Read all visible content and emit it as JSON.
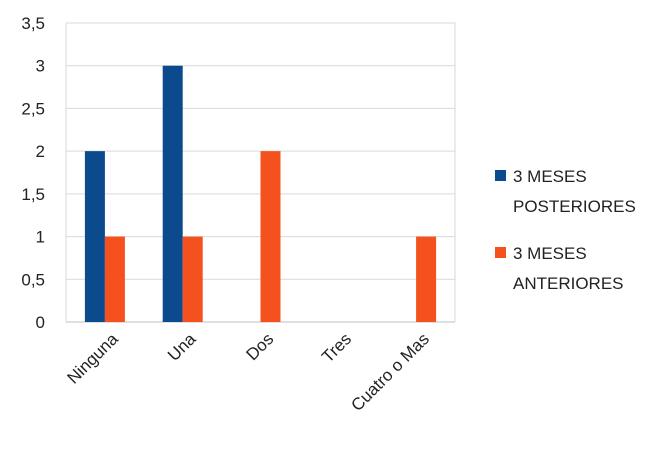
{
  "chart_data": {
    "type": "bar",
    "categories": [
      "Ninguna",
      "Una",
      "Dos",
      "Tres",
      "Cuatro o Mas"
    ],
    "series": [
      {
        "name": "3 MESES POSTERIORES",
        "legend_lines": [
          "3 MESES",
          "POSTERIORES"
        ],
        "color": "#0b4a8c",
        "values": [
          2,
          3,
          0,
          0,
          0
        ]
      },
      {
        "name": "3 MESES ANTERIORES",
        "legend_lines": [
          "3 MESES",
          "ANTERIORES"
        ],
        "color": "#f4511e",
        "values": [
          1,
          1,
          2,
          0,
          1
        ]
      }
    ],
    "ylim": [
      0,
      3.5
    ],
    "yticks": [
      "0",
      "0,5",
      "1",
      "1,5",
      "2",
      "2,5",
      "3",
      "3,5"
    ],
    "grid": true,
    "legend_position": "right"
  }
}
